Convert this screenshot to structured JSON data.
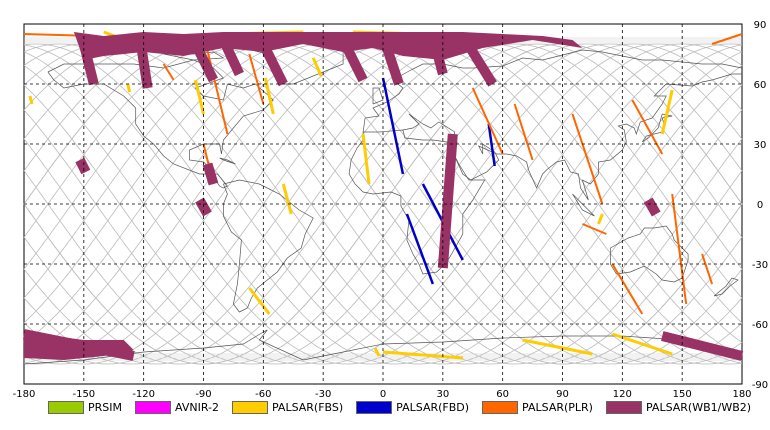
{
  "chart_data": {
    "type": "map",
    "projection": "equirectangular",
    "xlim": [
      -180,
      180
    ],
    "ylim": [
      -90,
      90
    ],
    "grid": true,
    "x_ticks": [
      -180,
      -150,
      -120,
      -90,
      -60,
      -30,
      0,
      30,
      60,
      90,
      120,
      150,
      180
    ],
    "x_tick_labels": [
      "-180",
      "-150",
      "-120",
      "-90",
      "-60",
      "-30",
      "0",
      "30",
      "60",
      "90",
      "120",
      "150",
      "180"
    ],
    "y_ticks": [
      90,
      60,
      30,
      0,
      -30,
      -60,
      -90
    ],
    "y_tick_labels": [
      "90",
      "60",
      "30",
      "0",
      "-30",
      "-60",
      "-90"
    ],
    "legend_position": "bottom",
    "series": [
      {
        "name": "PRSIM",
        "color": "#99cc00",
        "strips": []
      },
      {
        "name": "AVNIR-2",
        "color": "#ff00ff",
        "strips": []
      },
      {
        "name": "PALSAR(FBS)",
        "color": "#ffcc00",
        "strips": [
          [
            [
              -94,
              62
            ],
            [
              -90,
              45
            ]
          ],
          [
            [
              -59,
              63
            ],
            [
              -55,
              45
            ]
          ],
          [
            [
              -50,
              10
            ],
            [
              -46,
              -5
            ]
          ],
          [
            [
              -67,
              -42
            ],
            [
              -57,
              -55
            ]
          ],
          [
            [
              -35,
              73
            ],
            [
              -31,
              64
            ]
          ],
          [
            [
              -10,
              35
            ],
            [
              -7,
              10
            ]
          ],
          [
            [
              -177,
              54
            ],
            [
              -176,
              50
            ]
          ],
          [
            [
              -140,
              86
            ],
            [
              -132,
              83
            ]
          ],
          [
            [
              -80,
              85
            ],
            [
              -40,
              86
            ]
          ],
          [
            [
              -4,
              -72
            ],
            [
              -2,
              -76
            ]
          ],
          [
            [
              0,
              -74
            ],
            [
              40,
              -77
            ]
          ],
          [
            [
              70,
              -68
            ],
            [
              105,
              -75
            ]
          ],
          [
            [
              115,
              -65
            ],
            [
              145,
              -75
            ]
          ],
          [
            [
              150,
              -68
            ],
            [
              160,
              -72
            ]
          ],
          [
            [
              -100,
              82
            ],
            [
              -90,
              80
            ]
          ],
          [
            [
              -65,
              82
            ],
            [
              -45,
              85
            ]
          ],
          [
            [
              20,
              85
            ],
            [
              -15,
              86
            ]
          ],
          [
            [
              145,
              57
            ],
            [
              140,
              35
            ]
          ],
          [
            [
              110,
              -5
            ],
            [
              108,
              -10
            ]
          ],
          [
            [
              -128,
              60
            ],
            [
              -127,
              56
            ]
          ]
        ]
      },
      {
        "name": "PALSAR(FBD)",
        "color": "#0000cc",
        "strips": [
          [
            [
              0,
              63
            ],
            [
              10,
              15
            ]
          ],
          [
            [
              12,
              -5
            ],
            [
              25,
              -40
            ]
          ],
          [
            [
              20,
              10
            ],
            [
              40,
              -28
            ]
          ],
          [
            [
              53,
              40
            ],
            [
              56,
              19
            ]
          ]
        ]
      },
      {
        "name": "PALSAR(PLR)",
        "color": "#ff6600",
        "strips": [
          [
            [
              -180,
              85
            ],
            [
              -145,
              84
            ]
          ],
          [
            [
              -145,
              78
            ],
            [
              -130,
              82
            ]
          ],
          [
            [
              -90,
              85
            ],
            [
              -78,
              35
            ]
          ],
          [
            [
              -67,
              75
            ],
            [
              -60,
              50
            ]
          ],
          [
            [
              -90,
              30
            ],
            [
              -85,
              10
            ]
          ],
          [
            [
              45,
              58
            ],
            [
              60,
              25
            ]
          ],
          [
            [
              66,
              50
            ],
            [
              75,
              22
            ]
          ],
          [
            [
              95,
              45
            ],
            [
              110,
              0
            ]
          ],
          [
            [
              125,
              52
            ],
            [
              140,
              25
            ]
          ],
          [
            [
              115,
              -30
            ],
            [
              130,
              -55
            ]
          ],
          [
            [
              145,
              5
            ],
            [
              152,
              -50
            ]
          ],
          [
            [
              165,
              80
            ],
            [
              180,
              85
            ]
          ],
          [
            [
              160,
              -25
            ],
            [
              165,
              -40
            ]
          ],
          [
            [
              -110,
              70
            ],
            [
              -105,
              62
            ]
          ],
          [
            [
              100,
              -10
            ],
            [
              112,
              -15
            ]
          ]
        ]
      },
      {
        "name": "PALSAR(WB1/WB2)",
        "color": "#993366",
        "strips": [
          [
            [
              -150,
              80
            ],
            [
              -145,
              60
            ]
          ],
          [
            [
              -122,
              84
            ],
            [
              -118,
              58
            ]
          ],
          [
            [
              -95,
              82
            ],
            [
              -85,
              62
            ]
          ],
          [
            [
              -80,
              82
            ],
            [
              -72,
              65
            ]
          ],
          [
            [
              -60,
              80
            ],
            [
              -50,
              60
            ]
          ],
          [
            [
              -20,
              82
            ],
            [
              -10,
              62
            ]
          ],
          [
            [
              0,
              84
            ],
            [
              8,
              60
            ]
          ],
          [
            [
              25,
              84
            ],
            [
              30,
              65
            ]
          ],
          [
            [
              40,
              84
            ],
            [
              55,
              60
            ]
          ],
          [
            [
              -88,
              20
            ],
            [
              -85,
              10
            ]
          ],
          [
            [
              -92,
              2
            ],
            [
              -88,
              -5
            ]
          ],
          [
            [
              -152,
              22
            ],
            [
              -149,
              16
            ]
          ],
          [
            [
              35,
              35
            ],
            [
              30,
              -32
            ]
          ],
          [
            [
              133,
              2
            ],
            [
              137,
              -5
            ]
          ],
          [
            [
              -180,
              -65
            ],
            [
              -125,
              -76
            ]
          ],
          [
            [
              140,
              -66
            ],
            [
              180,
              -76
            ]
          ]
        ]
      }
    ]
  }
}
